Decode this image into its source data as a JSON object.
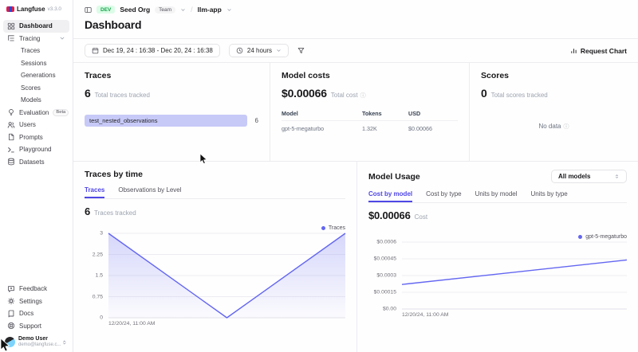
{
  "app": {
    "name": "Langfuse",
    "version": "v3.3.0"
  },
  "topbar": {
    "env": "DEV",
    "org": "Seed Org",
    "org_role": "Team",
    "separator": "/",
    "project": "llm-app"
  },
  "page_title": "Dashboard",
  "toolbar": {
    "date_range": "Dec 19, 24 : 16:38 - Dec 20, 24 : 16:38",
    "interval": "24 hours",
    "request_chart": "Request Chart"
  },
  "sidebar": {
    "items": [
      {
        "label": "Dashboard"
      },
      {
        "label": "Tracing"
      },
      {
        "label": "Traces"
      },
      {
        "label": "Sessions"
      },
      {
        "label": "Generations"
      },
      {
        "label": "Scores"
      },
      {
        "label": "Models"
      },
      {
        "label": "Evaluation",
        "badge": "Beta"
      },
      {
        "label": "Users"
      },
      {
        "label": "Prompts"
      },
      {
        "label": "Playground"
      },
      {
        "label": "Datasets"
      }
    ],
    "bottom_items": [
      {
        "label": "Feedback"
      },
      {
        "label": "Settings"
      },
      {
        "label": "Docs"
      },
      {
        "label": "Support"
      }
    ],
    "user": {
      "name": "Demo User",
      "email": "demo@langfuse.c..."
    }
  },
  "cards": {
    "traces": {
      "title": "Traces",
      "value": "6",
      "caption": "Total traces tracked",
      "bars": [
        {
          "label": "test_nested_observations",
          "count": "6"
        }
      ]
    },
    "model_costs": {
      "title": "Model costs",
      "value": "$0.00066",
      "caption": "Total cost",
      "table": {
        "headers": [
          "Model",
          "Tokens",
          "USD"
        ],
        "rows": [
          [
            "gpt-5-megaturbo",
            "1.32K",
            "$0.00066"
          ]
        ]
      }
    },
    "scores": {
      "title": "Scores",
      "value": "0",
      "caption": "Total scores tracked",
      "empty": "No data"
    }
  },
  "traces_by_time": {
    "title": "Traces by time",
    "tabs": [
      "Traces",
      "Observations by Level"
    ],
    "metric": "6",
    "metric_caption": "Traces tracked",
    "legend": "Traces"
  },
  "model_usage": {
    "title": "Model Usage",
    "model_select": "All models",
    "tabs": [
      "Cost by model",
      "Cost by type",
      "Units by model",
      "Units by type"
    ],
    "metric": "$0.00066",
    "metric_caption": "Cost",
    "legend": "gpt-5-megaturbo"
  },
  "chart_data": [
    {
      "type": "area",
      "title": "Traces by time",
      "series": [
        {
          "name": "Traces",
          "values": [
            3,
            0,
            3
          ]
        }
      ],
      "x_labels": [
        "12/20/24, 11:00 AM"
      ],
      "y_ticks": [
        "0",
        "0.75",
        "1.5",
        "2.25",
        "3"
      ],
      "ylim": [
        0,
        3
      ],
      "grid": true,
      "legend_position": "top-right",
      "line_color": "#6366f1"
    },
    {
      "type": "line",
      "title": "Model Usage - Cost by model",
      "series": [
        {
          "name": "gpt-5-megaturbo",
          "values": [
            0.00022,
            0.00044
          ]
        }
      ],
      "x_labels": [
        "12/20/24, 11:00 AM"
      ],
      "y_ticks": [
        "$0.00",
        "$0.00015",
        "$0.0003",
        "$0.00045",
        "$0.0006"
      ],
      "ylim": [
        0,
        0.0006
      ],
      "grid": true,
      "legend_position": "top-right",
      "line_color": "#6366f1"
    }
  ],
  "colors": {
    "accent": "#4f46e5",
    "line": "#6366f1",
    "bar_fill": "#c7c9f7",
    "env_badge_bg": "#dcfce7",
    "env_badge_text": "#16a34a",
    "border": "#ececf0"
  }
}
